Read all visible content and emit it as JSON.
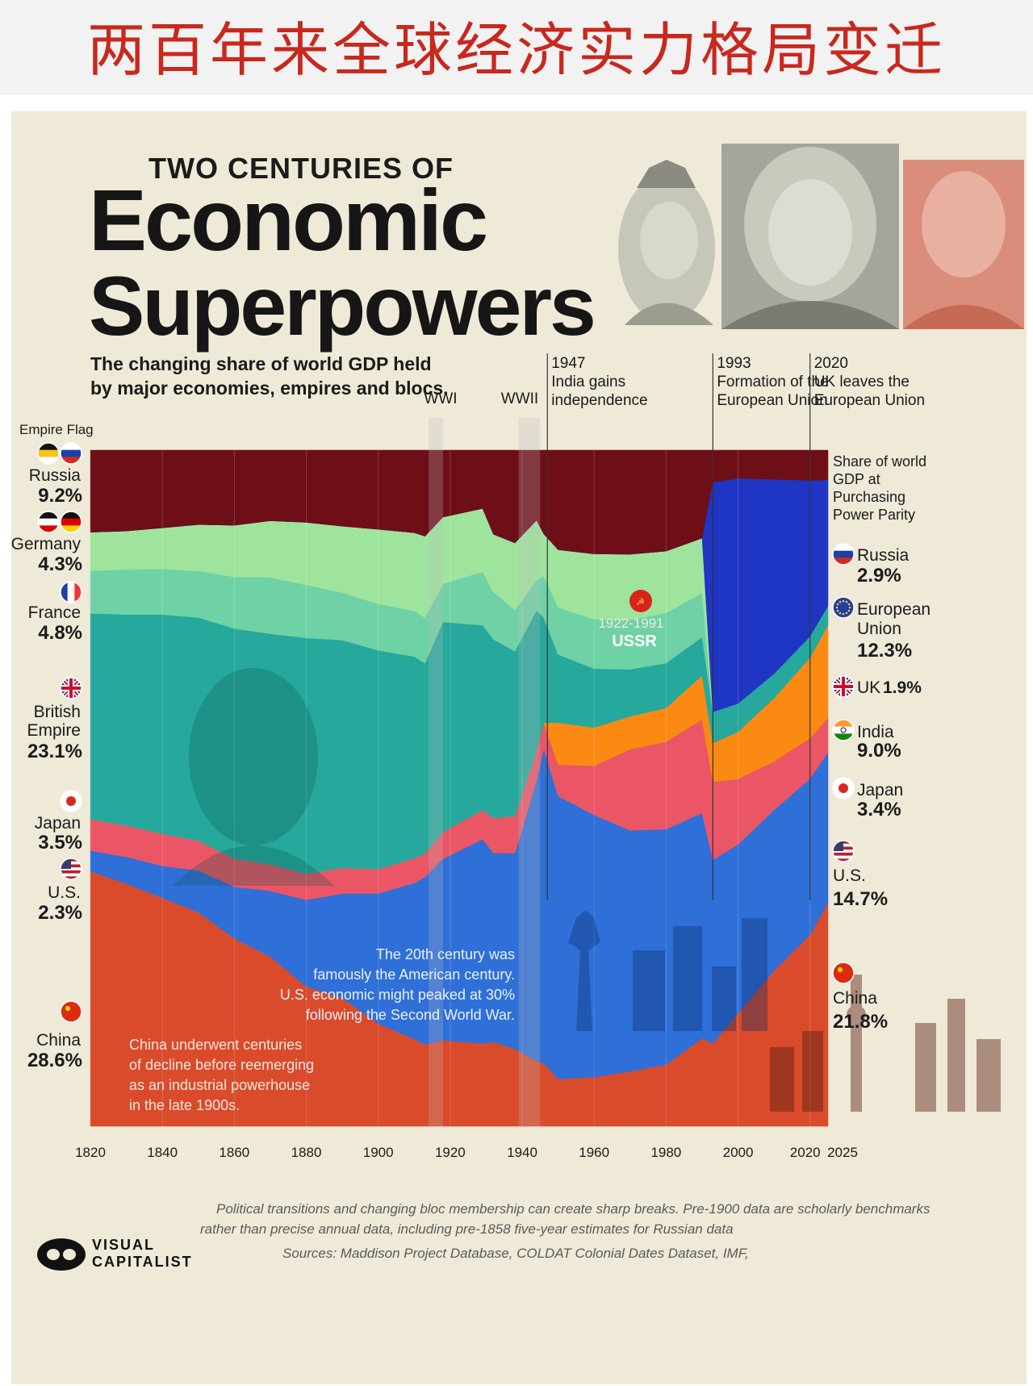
{
  "banner": {
    "title": "两百年来全球经济实力格局变迁"
  },
  "header": {
    "kicker": "TWO CENTURIES OF",
    "title_line1": "Economic",
    "title_line2": "Superpowers",
    "subtitle_line1": "The changing share of world GDP held",
    "subtitle_line2": "by major economies, empires and blocs."
  },
  "left_legend": {
    "heading": "Empire Flag",
    "items": [
      {
        "name": "Russia",
        "value": "9.2%"
      },
      {
        "name": "Germany",
        "value": "4.3%"
      },
      {
        "name": "France",
        "value": "4.8%"
      },
      {
        "name": "British Empire",
        "value": "23.1%"
      },
      {
        "name": "Japan",
        "value": "3.5%"
      },
      {
        "name": "U.S.",
        "value": "2.3%"
      },
      {
        "name": "China",
        "value": "28.6%"
      }
    ]
  },
  "right_legend": {
    "heading_line1": "Share of world",
    "heading_line2": "GDP at",
    "heading_line3": "Purchasing",
    "heading_line4": "Power Parity",
    "items": [
      {
        "name": "Russia",
        "value": "2.9%"
      },
      {
        "name": "European Union",
        "value": "12.3%"
      },
      {
        "name": "UK",
        "value": "1.9%"
      },
      {
        "name": "India",
        "value": "9.0%"
      },
      {
        "name": "Japan",
        "value": "3.4%"
      },
      {
        "name": "U.S.",
        "value": "14.7%"
      },
      {
        "name": "China",
        "value": "21.8%"
      }
    ]
  },
  "events": [
    {
      "label": "WWI"
    },
    {
      "label": "WWII"
    },
    {
      "year": "1947",
      "line1": "India gains",
      "line2": "independence"
    },
    {
      "year": "1993",
      "line1": "Formation of the",
      "line2": "European Union"
    },
    {
      "year": "2020",
      "line1": "UK leaves the",
      "line2": "European Union"
    }
  ],
  "annotations": {
    "ussr_years": "1922-1991",
    "ussr_name": "USSR",
    "us_note": [
      "The 20th century was",
      "famously the American century.",
      "U.S. economic might peaked at 30%",
      "following the Second World War."
    ],
    "china_note": [
      "China underwent centuries",
      "of decline before reemerging",
      "as an industrial powerhouse",
      "in the late 1900s."
    ]
  },
  "footer": {
    "note_line1": "Political transitions and changing bloc membership can create sharp breaks. Pre-1900 data are scholarly benchmarks",
    "note_line2": "rather than precise annual data, including pre-1858 five-year estimates for Russian data",
    "sources": "Sources: Maddison Project Database, COLDAT Colonial Dates Dataset, IMF,",
    "brand_line1": "VISUAL",
    "brand_line2": "CAPITALIST"
  },
  "colors": {
    "background": "#efe9d8",
    "russia": "#6e0f18",
    "germany": "#9fe49c",
    "france": "#6fd2a6",
    "british_empire": "#26a89c",
    "european_union": "#1f35c4",
    "uk": "#26a89c",
    "india": "#fb8a12",
    "japan": "#ea5666",
    "us": "#2f6fd8",
    "china": "#d94b2b",
    "banner_title": "#c8281e"
  },
  "chart_data": {
    "type": "area",
    "stacked": true,
    "xlabel": "",
    "ylabel": "",
    "xticks": [
      1820,
      1840,
      1860,
      1880,
      1900,
      1920,
      1940,
      1960,
      1980,
      2000,
      2020,
      2025
    ],
    "xlim": [
      1820,
      2025
    ],
    "ylim": [
      0,
      100
    ],
    "units": "Share of world GDP at Purchasing Power Parity (%)",
    "x": [
      1820,
      1830,
      1840,
      1850,
      1860,
      1870,
      1880,
      1890,
      1900,
      1910,
      1913,
      1918,
      1929,
      1932,
      1938,
      1944,
      1946,
      1950,
      1960,
      1970,
      1980,
      1990,
      1993,
      2000,
      2010,
      2020,
      2025
    ],
    "series": [
      {
        "name": "China",
        "color": "#d94b2b",
        "values": [
          28.6,
          27,
          25,
          23,
          20,
          18,
          14.5,
          13.5,
          11,
          9.5,
          9,
          9,
          8.5,
          8,
          7.5,
          6.5,
          6,
          4.5,
          4.5,
          5,
          5.5,
          8,
          9,
          12,
          16,
          19,
          21.8
        ]
      },
      {
        "name": "U.S.",
        "color": "#2f6fd8",
        "values": [
          2.3,
          3,
          3.5,
          4.5,
          5.5,
          7,
          9,
          11,
          14,
          17,
          18.5,
          19,
          21,
          18,
          19,
          28,
          30,
          27,
          24,
          22,
          21,
          20.5,
          20,
          18,
          16.5,
          15.5,
          14.7
        ]
      },
      {
        "name": "Japan",
        "color": "#ea5666",
        "values": [
          3.5,
          3.5,
          3.5,
          3.2,
          3,
          2.8,
          2.7,
          2.7,
          2.6,
          2.7,
          2.6,
          2.8,
          3,
          3.3,
          3.6,
          3,
          2.5,
          3,
          4.5,
          7.4,
          7.8,
          8.5,
          8.5,
          7,
          5,
          4,
          3.4
        ]
      },
      {
        "name": "India",
        "color": "#fb8a12",
        "values": [
          0,
          0,
          0,
          0,
          0,
          0,
          0,
          0,
          0,
          0,
          0,
          0,
          0,
          0,
          0,
          0,
          0,
          4,
          3.5,
          3,
          3,
          4,
          4.2,
          5,
          6.5,
          8,
          9.0
        ]
      },
      {
        "name": "British Empire / UK",
        "color": "#26a89c",
        "values": [
          23.1,
          23.5,
          24,
          24,
          24.5,
          24.5,
          24.5,
          24,
          23.5,
          22,
          21,
          22,
          19,
          17,
          16,
          14,
          10,
          6.5,
          5.4,
          4.3,
          4,
          3.5,
          3.4,
          3,
          2.5,
          2.1,
          1.9
        ]
      },
      {
        "name": "France",
        "color": "#6fd2a6",
        "values": [
          4.8,
          5,
          5,
          5,
          5.5,
          6,
          5.5,
          5,
          5,
          5,
          5,
          4,
          5.5,
          4.5,
          4,
          3,
          4,
          4.5,
          4.5,
          4.5,
          4.5,
          4,
          0,
          0,
          0,
          0,
          0
        ]
      },
      {
        "name": "Germany",
        "color": "#9fe49c",
        "values": [
          4.3,
          4.3,
          4.5,
          5,
          5.5,
          6,
          6.5,
          7,
          8,
          8.5,
          9,
          7,
          6.5,
          5.5,
          6.5,
          6,
          4,
          5.5,
          6,
          6,
          5.5,
          5,
          0,
          0,
          0,
          0,
          0
        ]
      },
      {
        "name": "European Union",
        "color": "#1f35c4",
        "values": [
          0,
          0,
          0,
          0,
          0,
          0,
          0,
          0,
          0,
          0,
          0,
          0,
          0,
          0,
          0,
          0,
          0,
          0,
          0,
          0,
          0,
          0,
          25,
          24,
          20,
          15.5,
          12.3
        ]
      },
      {
        "name": "Russia / USSR",
        "color": "#6e0f18",
        "values": [
          9.2,
          9,
          8.5,
          8,
          8,
          7.5,
          7.5,
          8,
          8.5,
          9,
          9.5,
          7,
          6,
          8,
          9,
          7,
          8,
          9.5,
          9.5,
          9.5,
          9,
          8,
          3.5,
          3,
          3,
          3,
          2.9
        ]
      }
    ]
  }
}
